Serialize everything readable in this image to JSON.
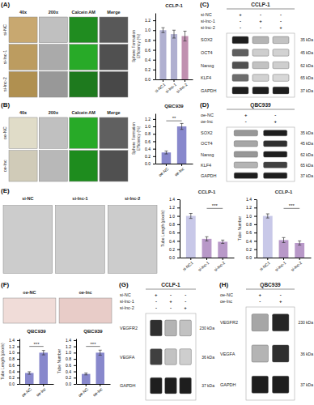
{
  "chart_data": [
    {
      "type": "image_grid",
      "label": "(A)",
      "col_labels": [
        "40x",
        "200x",
        "Calcein AM",
        "Merge"
      ],
      "row_labels": [
        "si-NC",
        "si-lnc-1",
        "si-lnc-2"
      ],
      "colors": [
        [
          "#c8a870",
          "#c0c0c0",
          "#208c20",
          "#585858"
        ],
        [
          "#bc9c60",
          "#aaaaaa",
          "#28aa28",
          "#505050"
        ],
        [
          "#b09050",
          "#989898",
          "#1e7a1e",
          "#484848"
        ]
      ]
    },
    {
      "type": "bar",
      "title": "CCLP-1",
      "categories": [
        "si-NC1",
        "si-lnc-1",
        "si-lnc-2"
      ],
      "values": [
        1.0,
        0.92,
        0.88
      ],
      "errors": [
        0.05,
        0.08,
        0.1
      ],
      "colors": [
        "#b0b0d0",
        "#b0b0d0",
        "#c090b0"
      ],
      "ylabel": "Sphere Formation\nEfficiency (%)",
      "ylim": [
        0,
        1.35
      ],
      "yticks": [
        {
          "value": 0,
          "label": "0.0"
        },
        0.2,
        0.4,
        0.6,
        0.8,
        {
          "value": 1,
          "label": "1.0"
        },
        1.2
      ],
      "grid": false
    },
    {
      "type": "western_blot",
      "label": "(C)",
      "title": "CCLP-1",
      "cond_labels": [
        "si-NC",
        "si-lnc-1",
        "si-lnc-2"
      ],
      "cond_symbols": [
        [
          "+",
          "-",
          "-"
        ],
        [
          "-",
          "+",
          "-"
        ],
        [
          "-",
          "-",
          "+"
        ]
      ],
      "bands": [
        "SOX2",
        "OCT4",
        "Nanog",
        "KLF4",
        "GAPDH"
      ],
      "kda": [
        "35 kDa",
        "45 kDa",
        "62 kDa",
        "65 kDa",
        "37 kDa"
      ],
      "intensities": [
        [
          0.9,
          0.4,
          0.35
        ],
        [
          0.7,
          0.3,
          0.28
        ],
        [
          0.75,
          0.35,
          0.3
        ],
        [
          0.65,
          0.28,
          0.25
        ],
        [
          0.9,
          0.9,
          0.9
        ]
      ],
      "color_range": [
        0,
        1
      ]
    },
    {
      "type": "image_grid",
      "label": "(B)",
      "col_labels": [
        "40x",
        "200x",
        "Calcein AM",
        "Merge"
      ],
      "row_labels": [
        "oe-NC",
        "oe-lnc"
      ],
      "colors": [
        [
          "#e0dcc8",
          "#c0c0c0",
          "#28aa28",
          "#606060"
        ],
        [
          "#d0cbb8",
          "#b8b8b8",
          "#1e8c1e",
          "#505050"
        ]
      ]
    },
    {
      "type": "bar",
      "title": "QBC939",
      "categories": [
        "oe-NC",
        "oe-lnc"
      ],
      "values": [
        0.3,
        1.0
      ],
      "errors": [
        0.04,
        0.08
      ],
      "colors": [
        "#8888cc",
        "#8888cc"
      ],
      "ylabel": "Sphere Formation\nEfficiency (%)",
      "ylim": [
        0,
        1.35
      ],
      "yticks": [
        {
          "value": 0,
          "label": "0.0"
        },
        0.2,
        0.4,
        0.6,
        0.8,
        {
          "value": 1,
          "label": "1.0"
        },
        1.2
      ],
      "annotations": [
        {
          "text": "**",
          "from": 0,
          "to": 1,
          "y": 1.15
        }
      ],
      "grid": false
    },
    {
      "type": "western_blot",
      "label": "(D)",
      "title": "QBC939",
      "cond_labels": [
        "oe-NC",
        "oe-lnc"
      ],
      "cond_symbols": [
        [
          "+",
          "-"
        ],
        [
          "-",
          "+"
        ]
      ],
      "bands": [
        "SOX2",
        "OCT4",
        "Nanog",
        "KLF4",
        "GAPDH"
      ],
      "kda": [
        "35 kDa",
        "45 kDa",
        "62 kDa",
        "65 kDa",
        "37 kDa"
      ],
      "intensities": [
        [
          0.5,
          0.9
        ],
        [
          0.45,
          0.85
        ],
        [
          0.5,
          0.9
        ],
        [
          0.4,
          0.8
        ],
        [
          0.9,
          0.9
        ]
      ],
      "color_range": [
        0,
        1
      ]
    },
    {
      "type": "image_grid",
      "label": "(E)",
      "col_labels": [
        "si-NC",
        "si-lnc-1",
        "si-lnc-2"
      ],
      "colors": [
        [
          "#cccccc",
          "#cccccc",
          "#cccccc"
        ]
      ]
    },
    {
      "type": "bar",
      "title": "CCLP-1",
      "categories": [
        "si-NC1",
        "si-lnc-1",
        "si-lnc-2"
      ],
      "values": [
        1.0,
        0.45,
        0.38
      ],
      "errors": [
        0.06,
        0.05,
        0.04
      ],
      "colors": [
        "#c8c8e8",
        "#b898c8",
        "#b898c8"
      ],
      "ylabel": "Tube Length (pixels)",
      "ylim": [
        0,
        1.4
      ],
      "yticks": [
        {
          "value": 0,
          "label": "0.0"
        },
        0.2,
        0.4,
        0.6,
        0.8,
        {
          "value": 1,
          "label": "1.0"
        },
        1.2,
        1.4
      ],
      "annotations": [
        {
          "text": "***",
          "from": 1,
          "to": 2,
          "y": 1.18
        }
      ],
      "grid": false
    },
    {
      "type": "bar",
      "title": "CCLP-1",
      "categories": [
        "si-NC1",
        "si-lnc-1",
        "si-lnc-2"
      ],
      "values": [
        1.0,
        0.42,
        0.35
      ],
      "errors": [
        0.05,
        0.06,
        0.05
      ],
      "colors": [
        "#c8c8e8",
        "#b898c8",
        "#b898c8"
      ],
      "ylabel": "Tube Number",
      "ylim": [
        0,
        1.4
      ],
      "yticks": [
        {
          "value": 0,
          "label": "0.0"
        },
        0.2,
        0.4,
        0.6,
        0.8,
        {
          "value": 1,
          "label": "1.0"
        },
        1.2,
        1.4
      ],
      "annotations": [
        {
          "text": "***",
          "from": 1,
          "to": 2,
          "y": 1.18
        }
      ],
      "grid": false
    },
    {
      "type": "image_grid",
      "label": "(F)",
      "col_labels": [
        "oe-NC",
        "oe-lnc"
      ],
      "colors": [
        [
          "#f0dcd8",
          "#e8ccc8"
        ]
      ]
    },
    {
      "type": "bar",
      "title": "QBC939",
      "categories": [
        "oe-NC",
        "oe-lnc"
      ],
      "values": [
        0.35,
        1.0
      ],
      "errors": [
        0.04,
        0.07
      ],
      "colors": [
        "#8888cc",
        "#8888cc"
      ],
      "ylabel": "Tube Length (pixels)",
      "ylim": [
        0,
        1.45
      ],
      "yticks": [
        {
          "value": 0,
          "label": "0.0"
        },
        0.2,
        0.4,
        0.6,
        0.8,
        {
          "value": 1,
          "label": "1.0"
        },
        1.2,
        1.4
      ],
      "annotations": [
        {
          "text": "***",
          "from": 0,
          "to": 1,
          "y": 1.2
        }
      ],
      "grid": false
    },
    {
      "type": "bar",
      "title": "QBC939",
      "categories": [
        "oe-NC",
        "oe-lnc"
      ],
      "values": [
        0.32,
        1.0
      ],
      "errors": [
        0.03,
        0.08
      ],
      "colors": [
        "#8888cc",
        "#8888cc"
      ],
      "ylabel": "Tube Number",
      "ylim": [
        0,
        1.45
      ],
      "yticks": [
        {
          "value": 0,
          "label": "0.0"
        },
        0.2,
        0.4,
        0.6,
        0.8,
        {
          "value": 1,
          "label": "1.0"
        },
        1.2,
        1.4
      ],
      "annotations": [
        {
          "text": "***",
          "from": 0,
          "to": 1,
          "y": 1.2
        }
      ],
      "grid": false
    },
    {
      "type": "western_blot",
      "label": "(G)",
      "title": "CCLP-1",
      "cond_labels": [
        "si-NC",
        "si-lnc-1",
        "si-lnc-2"
      ],
      "cond_symbols": [
        [
          "+",
          "-",
          "-"
        ],
        [
          "-",
          "+",
          "-"
        ],
        [
          "-",
          "-",
          "+"
        ]
      ],
      "bands": [
        "VEGFR2",
        "VEGFA",
        "GAPDH"
      ],
      "kda": [
        "230 kDa",
        "36 kDa",
        "37 kDa"
      ],
      "intensities": [
        [
          0.85,
          0.4,
          0.35
        ],
        [
          0.8,
          0.35,
          0.3
        ],
        [
          0.9,
          0.9,
          0.9
        ]
      ],
      "color_range": [
        0,
        1
      ]
    },
    {
      "type": "western_blot",
      "label": "(H)",
      "title": "QBC939",
      "cond_labels": [
        "oe-NC",
        "oe-lnc"
      ],
      "cond_symbols": [
        [
          "+",
          "-"
        ],
        [
          "-",
          "+"
        ]
      ],
      "bands": [
        "VEGFR2",
        "VEGFA",
        "GAPDH"
      ],
      "kda": [
        "230 kDa",
        "36 kDa",
        "37 kDa"
      ],
      "intensities": [
        [
          0.45,
          0.88
        ],
        [
          0.4,
          0.85
        ],
        [
          0.9,
          0.9
        ]
      ],
      "color_range": [
        0,
        1
      ]
    }
  ]
}
